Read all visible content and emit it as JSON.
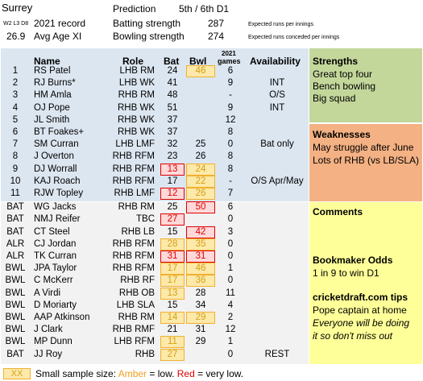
{
  "header": {
    "team": "Surrey",
    "prediction_label": "Prediction",
    "prediction_value": "5th / 6th D1",
    "record_small": "W2 L3 D8",
    "record_label": "2021 record",
    "batting_label": "Batting strength",
    "batting_value": "287",
    "batting_note": "Expected runs per innings",
    "avg_age": "26.9",
    "avg_age_label": "Avg Age XI",
    "bowling_label": "Bowling strength",
    "bowling_value": "274",
    "bowling_note": "Expected runs conceded per innings"
  },
  "columns": {
    "name": "Name",
    "role": "Role",
    "bat": "Bat",
    "bwl": "Bwl",
    "games_year": "2021",
    "games": "games",
    "availability": "Availability"
  },
  "players": [
    {
      "num": "1",
      "name": "RS Patel",
      "role": "LHB RM",
      "bat": "24",
      "bwl": "46",
      "games": "6",
      "avail": "",
      "bat_flag": "",
      "bwl_flag": "amber"
    },
    {
      "num": "2",
      "name": "RJ Burns*",
      "role": "LHB WK",
      "bat": "41",
      "bwl": "",
      "games": "9",
      "avail": "INT",
      "bat_flag": "",
      "bwl_flag": ""
    },
    {
      "num": "3",
      "name": "HM Amla",
      "role": "RHB RM",
      "bat": "48",
      "bwl": "",
      "games": "-",
      "avail": "O/S",
      "bat_flag": "",
      "bwl_flag": ""
    },
    {
      "num": "4",
      "name": "OJ Pope",
      "role": "RHB WK",
      "bat": "51",
      "bwl": "",
      "games": "9",
      "avail": "INT",
      "bat_flag": "",
      "bwl_flag": ""
    },
    {
      "num": "5",
      "name": "JL Smith",
      "role": "RHB WK",
      "bat": "37",
      "bwl": "",
      "games": "12",
      "avail": "",
      "bat_flag": "",
      "bwl_flag": ""
    },
    {
      "num": "6",
      "name": "BT Foakes+",
      "role": "RHB WK",
      "bat": "37",
      "bwl": "",
      "games": "8",
      "avail": "",
      "bat_flag": "",
      "bwl_flag": ""
    },
    {
      "num": "7",
      "name": "SM Curran",
      "role": "LHB LMF",
      "bat": "32",
      "bwl": "25",
      "games": "0",
      "avail": "Bat only",
      "bat_flag": "",
      "bwl_flag": ""
    },
    {
      "num": "8",
      "name": "J Overton",
      "role": "RHB RFM",
      "bat": "23",
      "bwl": "26",
      "games": "8",
      "avail": "",
      "bat_flag": "",
      "bwl_flag": ""
    },
    {
      "num": "9",
      "name": "DJ Worrall",
      "role": "RHB RFM",
      "bat": "13",
      "bwl": "24",
      "games": "8",
      "avail": "",
      "bat_flag": "red",
      "bwl_flag": "amber"
    },
    {
      "num": "10",
      "name": "KAJ Roach",
      "role": "RHB RFM",
      "bat": "17",
      "bwl": "22",
      "games": "-",
      "avail": "O/S Apr/May",
      "bat_flag": "",
      "bwl_flag": "amber"
    },
    {
      "num": "11",
      "name": "RJW Topley",
      "role": "RHB LMF",
      "bat": "12",
      "bwl": "26",
      "games": "7",
      "avail": "",
      "bat_flag": "red",
      "bwl_flag": "amber"
    },
    {
      "num": "BAT",
      "name": "WG Jacks",
      "role": "RHB RM",
      "bat": "25",
      "bwl": "50",
      "games": "6",
      "avail": "",
      "bat_flag": "",
      "bwl_flag": "red"
    },
    {
      "num": "BAT",
      "name": "NMJ Reifer",
      "role": "TBC",
      "bat": "27",
      "bwl": "",
      "games": "0",
      "avail": "",
      "bat_flag": "red",
      "bwl_flag": ""
    },
    {
      "num": "BAT",
      "name": "CT Steel",
      "role": "RHB LB",
      "bat": "15",
      "bwl": "42",
      "games": "3",
      "avail": "",
      "bat_flag": "",
      "bwl_flag": "red"
    },
    {
      "num": "ALR",
      "name": "CJ Jordan",
      "role": "RHB RFM",
      "bat": "28",
      "bwl": "35",
      "games": "0",
      "avail": "",
      "bat_flag": "amber",
      "bwl_flag": "amber"
    },
    {
      "num": "ALR",
      "name": "TK Curran",
      "role": "RHB RFM",
      "bat": "31",
      "bwl": "31",
      "games": "0",
      "avail": "",
      "bat_flag": "red",
      "bwl_flag": "red"
    },
    {
      "num": "BWL",
      "name": "JPA Taylor",
      "role": "RHB RFM",
      "bat": "17",
      "bwl": "46",
      "games": "1",
      "avail": "",
      "bat_flag": "amber",
      "bwl_flag": "amber"
    },
    {
      "num": "BWL",
      "name": "C McKerr",
      "role": "RHB RF",
      "bat": "17",
      "bwl": "36",
      "games": "0",
      "avail": "",
      "bat_flag": "amber",
      "bwl_flag": "amber"
    },
    {
      "num": "BWL",
      "name": "A Virdi",
      "role": "RHB OB",
      "bat": "13",
      "bwl": "28",
      "games": "11",
      "avail": "",
      "bat_flag": "amber",
      "bwl_flag": ""
    },
    {
      "num": "BWL",
      "name": "D Moriarty",
      "role": "LHB SLA",
      "bat": "15",
      "bwl": "34",
      "games": "4",
      "avail": "",
      "bat_flag": "",
      "bwl_flag": ""
    },
    {
      "num": "BWL",
      "name": "AAP Atkinson",
      "role": "RHB RM",
      "bat": "14",
      "bwl": "29",
      "games": "2",
      "avail": "",
      "bat_flag": "amber",
      "bwl_flag": "amber"
    },
    {
      "num": "BWL",
      "name": "J Clark",
      "role": "RHB RMF",
      "bat": "21",
      "bwl": "31",
      "games": "12",
      "avail": "",
      "bat_flag": "",
      "bwl_flag": ""
    },
    {
      "num": "BWL",
      "name": "MP Dunn",
      "role": "LHB RFM",
      "bat": "11",
      "bwl": "29",
      "games": "1",
      "avail": "",
      "bat_flag": "amber",
      "bwl_flag": ""
    },
    {
      "num": "BAT",
      "name": "JJ Roy",
      "role": "RHB",
      "bat": "27",
      "bwl": "",
      "games": "0",
      "avail": "REST",
      "bat_flag": "amber",
      "bwl_flag": ""
    }
  ],
  "strengths": {
    "title": "Strengths",
    "lines": [
      "Great top four",
      "Bench bowling",
      "Big squad"
    ]
  },
  "weaknesses": {
    "title": "Weaknesses",
    "lines": [
      "May struggle after June",
      "Lots of RHB (vs LB/SLA)"
    ]
  },
  "comments": {
    "title": "Comments"
  },
  "bookmaker": {
    "title": "Bookmaker Odds",
    "line": "1 in 9 to win D1"
  },
  "tips": {
    "title": "cricketdraft.com tips",
    "line": "Pope captain at home",
    "italic1": "Everyone will be doing",
    "italic2": "it so don't miss out"
  },
  "legend": {
    "swatch": "XX",
    "prefix": "Small sample size: ",
    "amber": "Amber",
    "mid": " = low. ",
    "red": "Red",
    "suffix": " = very low."
  },
  "colors": {
    "amber": "#f0b030",
    "red": "#e00000",
    "blue_panel": "#dce6f1",
    "green_panel": "#c4d79b",
    "orange_panel": "#f4b183",
    "yellow_panel": "#ffff99"
  }
}
